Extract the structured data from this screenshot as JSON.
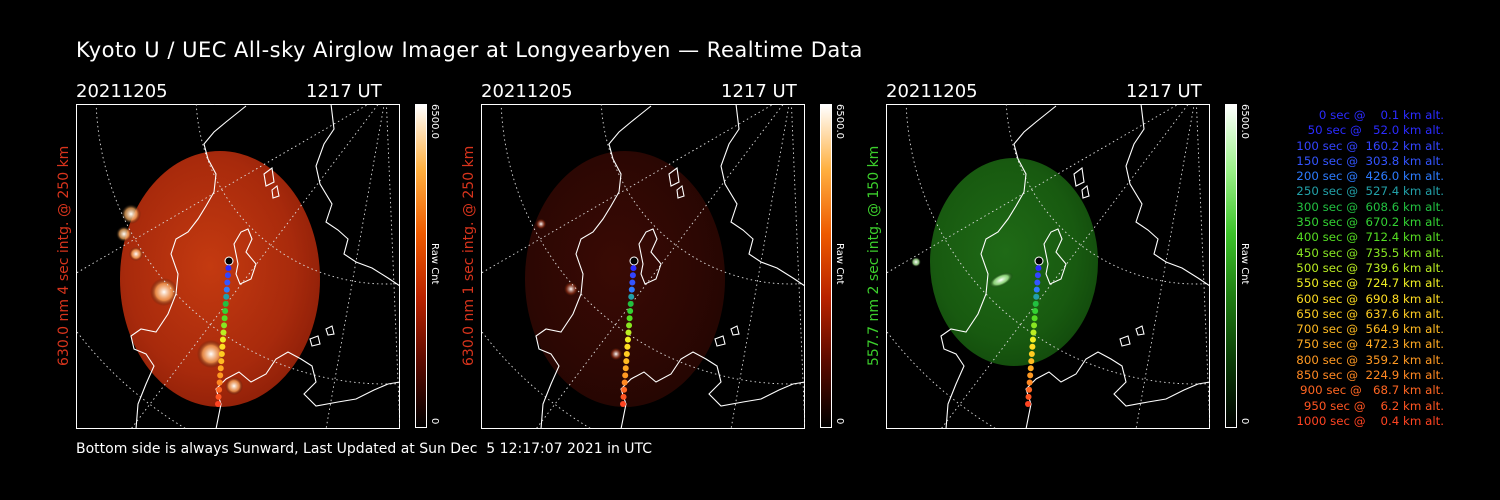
{
  "title": "Kyoto U / UEC All-sky Airglow Imager at Longyearbyen — Realtime Data",
  "panels": [
    {
      "date": "20211205",
      "time": "1217 UT",
      "side_label": "630.0 nm 4 sec intg. @ 250 km",
      "cbar_max": "6500.0",
      "cbar_min": "0",
      "cbar_unit": "Raw Cnt",
      "color": "#d8341c",
      "cmap": "red",
      "brightness": 1.0
    },
    {
      "date": "20211205",
      "time": "1217 UT",
      "side_label": "630.0 nm 1 sec intg. @ 250 km",
      "cbar_max": "6500.0",
      "cbar_min": "0",
      "cbar_unit": "Raw Cnt",
      "color": "#d8341c",
      "cmap": "red",
      "brightness": 0.35
    },
    {
      "date": "20211205",
      "time": "1217 UT",
      "side_label": "557.7 nm 2 sec intg. @ 150 km",
      "cbar_max": "6500.0",
      "cbar_min": "0",
      "cbar_unit": "Raw Cnt",
      "color": "#3ccf2c",
      "cmap": "green",
      "brightness": 0.5
    }
  ],
  "footer": "Bottom side is always Sunward, Last Updated at Sun Dec  5 12:17:07 2021 in UTC",
  "legend": [
    {
      "text": "   0 sec @    0.1 km alt.",
      "color": "#2b2bff"
    },
    {
      "text": "  50 sec @   52.0 km alt.",
      "color": "#2b2bff"
    },
    {
      "text": " 100 sec @  160.2 km alt.",
      "color": "#3344ff"
    },
    {
      "text": " 150 sec @  303.8 km alt.",
      "color": "#3355ff"
    },
    {
      "text": " 200 sec @  426.0 km alt.",
      "color": "#2d7bff"
    },
    {
      "text": " 250 sec @  527.4 km alt.",
      "color": "#22a0a8"
    },
    {
      "text": " 300 sec @  608.6 km alt.",
      "color": "#22c040"
    },
    {
      "text": " 350 sec @  670.2 km alt.",
      "color": "#33d233"
    },
    {
      "text": " 400 sec @  712.4 km alt.",
      "color": "#55dd22"
    },
    {
      "text": " 450 sec @  735.5 km alt.",
      "color": "#88e622"
    },
    {
      "text": " 500 sec @  739.6 km alt.",
      "color": "#bbee22"
    },
    {
      "text": " 550 sec @  724.7 km alt.",
      "color": "#eeee22"
    },
    {
      "text": " 600 sec @  690.8 km alt.",
      "color": "#ffdd22"
    },
    {
      "text": " 650 sec @  637.6 km alt.",
      "color": "#ffcc22"
    },
    {
      "text": " 700 sec @  564.9 km alt.",
      "color": "#ffbb22"
    },
    {
      "text": " 750 sec @  472.3 km alt.",
      "color": "#ffaa22"
    },
    {
      "text": " 800 sec @  359.2 km alt.",
      "color": "#ff9922"
    },
    {
      "text": " 850 sec @  224.9 km alt.",
      "color": "#ff8822"
    },
    {
      "text": " 900 sec @   68.7 km alt.",
      "color": "#ff6622"
    },
    {
      "text": " 950 sec @    6.2 km alt.",
      "color": "#ff5522"
    },
    {
      "text": "1000 sec @    0.4 km alt.",
      "color": "#ff4422"
    }
  ]
}
